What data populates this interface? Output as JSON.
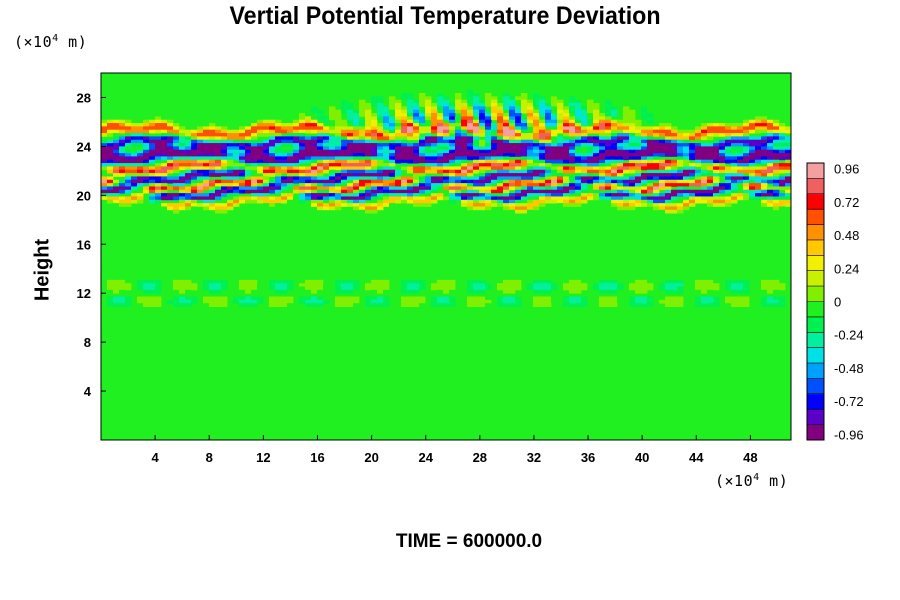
{
  "chart_data": {
    "type": "heatmap",
    "title": "Vertial Potential Temperature Deviation",
    "ylabel": "Height",
    "xlabel": "",
    "y_unit": {
      "prefix": "(×10",
      "exp": "4",
      "suffix": " m)"
    },
    "x_unit": {
      "prefix": "(×10",
      "exp": "4",
      "suffix": " m)"
    },
    "xlim": [
      0,
      51
    ],
    "ylim": [
      0,
      30
    ],
    "x_ticks": [
      4,
      8,
      12,
      16,
      20,
      24,
      28,
      32,
      36,
      40,
      44,
      48
    ],
    "y_ticks": [
      4,
      8,
      12,
      16,
      20,
      24,
      28
    ],
    "colorbar": {
      "range": [
        -1.0,
        1.0
      ],
      "tick_values": [
        0.96,
        0.72,
        0.48,
        0.24,
        0,
        -0.24,
        -0.48,
        -0.72,
        -0.96
      ],
      "tick_labels": [
        "0.96",
        "0.72",
        "0.48",
        "0.24",
        "0",
        "-0.24",
        "-0.48",
        "-0.72",
        "-0.96"
      ],
      "colors": [
        "#800080",
        "#5a00c8",
        "#0000ff",
        "#0050ff",
        "#00a0ff",
        "#00e0e6",
        "#00f0a0",
        "#00f050",
        "#20f020",
        "#80f000",
        "#c8f000",
        "#f0f000",
        "#ffc800",
        "#ff9000",
        "#ff5000",
        "#ff0000",
        "#f06060",
        "#f4a0a0"
      ]
    },
    "field_bands": [
      {
        "y": 25.2,
        "amp": 0.75,
        "width": 0.45
      },
      {
        "y": 24.3,
        "amp": -0.8,
        "width": 0.4
      },
      {
        "y": 23.2,
        "amp": -1.0,
        "width": 0.55
      },
      {
        "y": 22.3,
        "amp": 1.0,
        "width": 0.45
      },
      {
        "y": 21.5,
        "amp": -1.0,
        "width": 0.4
      },
      {
        "y": 20.8,
        "amp": 1.0,
        "width": 0.35
      },
      {
        "y": 20.2,
        "amp": -1.0,
        "width": 0.35
      },
      {
        "y": 19.5,
        "amp": 0.55,
        "width": 0.3
      }
    ],
    "background_value": -0.08
  },
  "time_label": "TIME = 600000.0"
}
